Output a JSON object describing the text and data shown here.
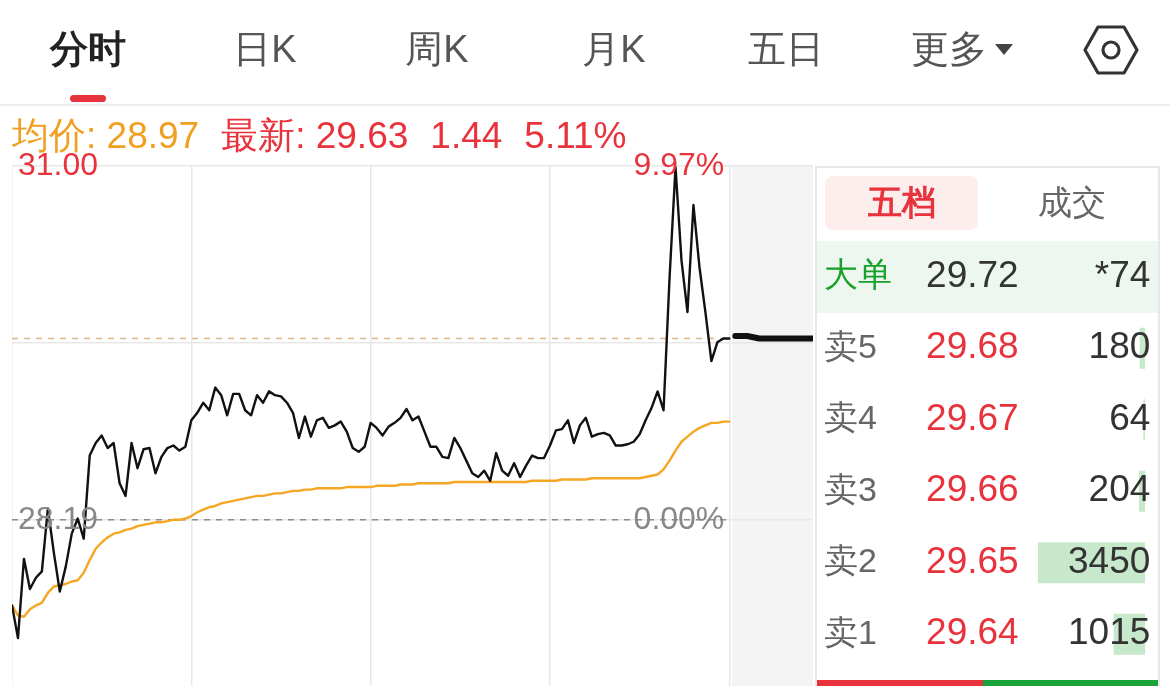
{
  "chart_data": [
    {
      "type": "other",
      "annotations": [
        "分时",
        "日K",
        "周K",
        "月K",
        "五日",
        "更多"
      ]
    },
    {
      "type": "line",
      "categories": [
        null,
        null,
        null,
        null,
        null,
        null,
        null,
        null,
        null,
        null,
        null,
        null,
        null,
        null,
        null,
        null,
        null,
        null,
        null,
        null,
        null,
        null,
        null,
        null,
        null,
        null,
        null,
        null,
        null,
        null,
        null,
        null,
        null,
        null,
        null,
        null,
        null,
        null,
        null,
        null,
        null,
        null,
        null,
        null,
        null,
        null,
        null,
        null,
        null,
        null,
        null,
        null,
        null,
        null,
        null,
        null,
        null,
        null,
        null,
        null,
        null,
        null,
        null,
        null,
        null,
        null,
        null,
        null,
        null,
        null,
        null,
        null,
        null,
        null,
        null,
        null,
        null,
        null,
        null,
        null,
        null,
        null,
        null,
        null,
        null,
        null,
        null,
        null,
        null,
        null,
        null,
        null,
        null,
        null,
        null,
        null,
        null,
        null,
        null,
        null,
        null,
        null,
        null,
        null,
        null,
        null,
        null,
        null,
        null,
        null,
        null,
        null,
        null,
        null,
        null,
        null,
        null,
        null,
        null,
        null,
        null,
        null,
        null,
        null,
        null,
        null,
        null,
        null,
        null,
        null,
        null,
        null,
        null,
        null,
        null
      ],
      "series": [
        {
          "color": "#111111",
          "values": [
            27.51,
            27.25,
            27.88,
            27.64,
            27.73,
            27.78,
            28.28,
            27.93,
            27.62,
            27.82,
            28.08,
            28.2,
            28.04,
            28.7,
            28.8,
            28.86,
            28.76,
            28.8,
            28.48,
            28.38,
            28.8,
            28.6,
            28.75,
            28.76,
            28.56,
            28.69,
            28.76,
            28.78,
            28.74,
            28.77,
            28.98,
            29.04,
            29.12,
            29.06,
            29.24,
            29.18,
            29.02,
            29.19,
            29.19,
            29.06,
            29.02,
            29.18,
            29.12,
            29.21,
            29.18,
            29.17,
            29.12,
            29.04,
            28.84,
            29.01,
            28.85,
            28.98,
            29.0,
            28.92,
            28.94,
            28.97,
            28.89,
            28.76,
            28.73,
            28.77,
            28.96,
            28.92,
            28.86,
            28.93,
            28.96,
            29.0,
            29.07,
            28.98,
            29.01,
            28.89,
            28.77,
            28.77,
            28.69,
            28.68,
            28.84,
            28.76,
            28.66,
            28.56,
            28.53,
            28.58,
            28.5,
            28.72,
            28.58,
            28.54,
            28.64,
            28.53,
            28.62,
            28.7,
            28.68,
            28.68,
            28.78,
            28.9,
            28.91,
            28.98,
            28.8,
            28.94,
            29.0,
            28.85,
            28.87,
            28.88,
            28.86,
            28.78,
            28.78,
            28.79,
            28.81,
            28.87,
            28.98,
            29.08,
            29.21,
            29.06,
            30.11,
            30.99,
            30.25,
            29.84,
            30.69,
            30.2,
            29.84,
            29.45,
            29.6,
            29.63,
            29.63,
            null,
            null,
            null,
            null,
            null,
            null,
            null,
            null,
            null,
            null,
            null,
            null,
            null,
            null
          ]
        },
        {
          "color": "#f5a623",
          "values": [
            27.51,
            27.43,
            27.42,
            27.48,
            27.51,
            27.53,
            27.61,
            27.66,
            27.67,
            27.68,
            27.7,
            27.71,
            27.77,
            27.87,
            27.96,
            28.01,
            28.05,
            28.08,
            28.09,
            28.11,
            28.12,
            28.14,
            28.15,
            28.16,
            28.17,
            28.17,
            28.18,
            28.19,
            28.19,
            28.2,
            28.22,
            28.25,
            28.27,
            28.29,
            28.3,
            28.32,
            28.33,
            28.34,
            28.35,
            28.36,
            28.37,
            28.38,
            28.38,
            28.39,
            28.4,
            28.4,
            28.41,
            28.42,
            28.42,
            28.43,
            28.43,
            28.44,
            28.44,
            28.44,
            28.44,
            28.44,
            28.45,
            28.45,
            28.45,
            28.45,
            28.45,
            28.46,
            28.46,
            28.46,
            28.46,
            28.47,
            28.47,
            28.47,
            28.48,
            28.48,
            28.48,
            28.48,
            28.48,
            28.48,
            28.49,
            28.49,
            28.49,
            28.49,
            28.49,
            28.49,
            28.49,
            28.49,
            28.49,
            28.49,
            28.49,
            28.49,
            28.49,
            28.5,
            28.5,
            28.5,
            28.5,
            28.5,
            28.51,
            28.51,
            28.51,
            28.51,
            28.51,
            28.52,
            28.52,
            28.52,
            28.52,
            28.52,
            28.52,
            28.52,
            28.52,
            28.52,
            28.53,
            28.54,
            28.55,
            28.59,
            28.66,
            28.74,
            28.81,
            28.85,
            28.89,
            28.92,
            28.94,
            28.96,
            28.96,
            28.97,
            28.97,
            null,
            null,
            null,
            null,
            null,
            null,
            null,
            null,
            null,
            null,
            null,
            null,
            null,
            null
          ]
        },
        {
          "color": "#111111",
          "values": [
            null,
            null,
            null,
            null,
            null,
            null,
            null,
            null,
            null,
            null,
            null,
            null,
            null,
            null,
            null,
            null,
            null,
            null,
            null,
            null,
            null,
            null,
            null,
            null,
            null,
            null,
            null,
            null,
            null,
            null,
            null,
            null,
            null,
            null,
            null,
            null,
            null,
            null,
            null,
            null,
            null,
            null,
            null,
            null,
            null,
            null,
            null,
            null,
            null,
            null,
            null,
            null,
            null,
            null,
            null,
            null,
            null,
            null,
            null,
            null,
            null,
            null,
            null,
            null,
            null,
            null,
            null,
            null,
            null,
            null,
            null,
            null,
            null,
            null,
            null,
            null,
            null,
            null,
            null,
            null,
            null,
            null,
            null,
            null,
            null,
            null,
            null,
            null,
            null,
            null,
            null,
            null,
            null,
            null,
            null,
            null,
            null,
            null,
            null,
            null,
            null,
            null,
            null,
            null,
            null,
            null,
            null,
            null,
            null,
            null,
            null,
            null,
            null,
            null,
            null,
            null,
            null,
            null,
            null,
            null,
            null,
            29.65,
            29.65,
            29.65,
            29.64,
            29.63,
            29.63,
            29.63,
            29.63,
            29.63,
            29.63,
            29.63,
            29.63,
            29.63,
            29.63
          ]
        }
      ],
      "ylim": [
        26.87,
        31.0
      ],
      "yticks": [
        {
          "value": 31.0,
          "label": "31.00"
        },
        {
          "value": 29.6,
          "label": null
        },
        {
          "value": 28.19,
          "label": "28.19"
        }
      ],
      "y2lim": [
        -4.68,
        9.97
      ],
      "y2ticks": [
        {
          "value": 9.97,
          "label": "9.97%"
        },
        {
          "value": 0,
          "label": "0.00%"
        }
      ],
      "ref_lines": [
        {
          "axis": "y",
          "value": 28.19,
          "color": "#8c8c8c",
          "line_style": "dashed"
        },
        {
          "axis": "y",
          "value": 29.63,
          "color": "#d9b48c",
          "line_style": "dashed"
        }
      ],
      "grid": true,
      "legend": false,
      "marker": "none",
      "tick_labels": "y",
      "annotations": [
        "均价: 28.97",
        "最新: 29.63",
        "1.44",
        "5.11%"
      ]
    },
    {
      "type": "bar",
      "orientation": "horizontal",
      "categories": [
        "大单",
        "卖5",
        "卖4",
        "卖3",
        "卖2",
        "卖1"
      ],
      "values": [
        null,
        180,
        64,
        204,
        3450,
        1015
      ],
      "value_labels": [
        "*74",
        "180",
        "64",
        "204",
        "3450",
        "1015"
      ],
      "color": "#c8e8cb",
      "xlim": [
        3450,
        0
      ],
      "tick_labels": "y",
      "legend": false,
      "annotations": [
        "五档",
        "成交",
        "29.72",
        "29.68",
        "29.67",
        "29.66",
        "29.65",
        "29.64"
      ]
    }
  ]
}
